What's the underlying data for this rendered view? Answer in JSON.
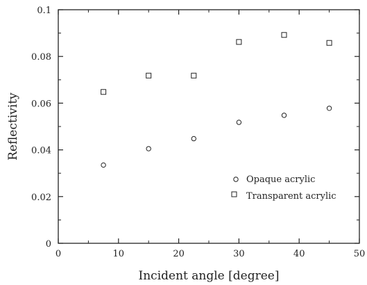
{
  "chart_data": {
    "type": "scatter",
    "title": "",
    "xlabel": "Incident angle [degree]",
    "ylabel": "Reflectivity",
    "xlim": [
      0,
      50
    ],
    "ylim": [
      0,
      0.1
    ],
    "xticks": [
      0,
      10,
      20,
      30,
      40,
      50
    ],
    "yticks": [
      0,
      0.02,
      0.04,
      0.06,
      0.08,
      0.1
    ],
    "xtick_labels": [
      "0",
      "10",
      "20",
      "30",
      "40",
      "50"
    ],
    "ytick_labels": [
      "0",
      "0.02",
      "0.04",
      "0.06",
      "0.08",
      "0.1"
    ],
    "grid": false,
    "legend_position": "lower-right",
    "series": [
      {
        "name": "Opaque acrylic",
        "marker": "circle",
        "x": [
          7.5,
          15,
          22.5,
          30,
          37.5,
          45
        ],
        "y": [
          0.0335,
          0.0405,
          0.0448,
          0.0518,
          0.0548,
          0.0578
        ]
      },
      {
        "name": "Transparent acrylic",
        "marker": "square",
        "x": [
          7.5,
          15,
          22.5,
          30,
          37.5,
          45
        ],
        "y": [
          0.0648,
          0.0718,
          0.0718,
          0.0862,
          0.0892,
          0.0858
        ]
      }
    ]
  }
}
